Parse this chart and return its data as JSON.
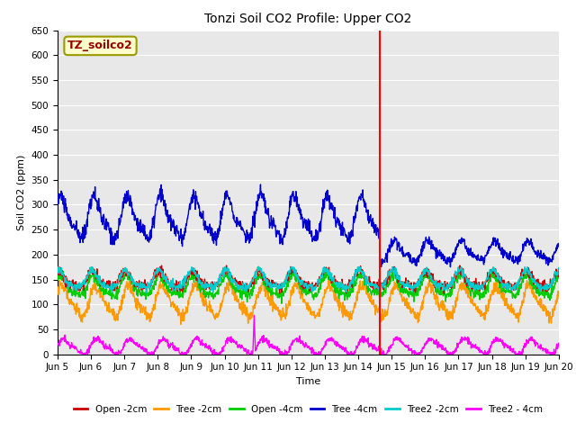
{
  "title": "Tonzi Soil CO2 Profile: Upper CO2",
  "ylabel": "Soil CO2 (ppm)",
  "xlabel": "Time",
  "watermark": "TZ_soilco2",
  "ylim": [
    0,
    650
  ],
  "yticks": [
    0,
    50,
    100,
    150,
    200,
    250,
    300,
    350,
    400,
    450,
    500,
    550,
    600,
    650
  ],
  "xlim_start": 5,
  "xlim_end": 20,
  "xtick_labels": [
    "Jun 5",
    "Jun 6",
    "Jun 7",
    "Jun 8",
    "Jun 9",
    "Jun 10",
    "Jun 11",
    "Jun 12",
    "Jun 13",
    "Jun 14",
    "Jun 15",
    "Jun 16",
    "Jun 17",
    "Jun 18",
    "Jun 19",
    "Jun 20"
  ],
  "xtick_positions": [
    5,
    6,
    7,
    8,
    9,
    10,
    11,
    12,
    13,
    14,
    15,
    16,
    17,
    18,
    19,
    20
  ],
  "vertical_line_x": 14.65,
  "vertical_line_color": "#ff0000",
  "series": {
    "Open_2cm": {
      "color": "#cc0000",
      "label": "Open -2cm",
      "lw": 1.0
    },
    "Tree_2cm": {
      "color": "#ff9900",
      "label": "Tree -2cm",
      "lw": 1.0
    },
    "Open_4cm": {
      "color": "#00cc00",
      "label": "Open -4cm",
      "lw": 1.0
    },
    "Tree_4cm": {
      "color": "#0000cc",
      "label": "Tree -4cm",
      "lw": 1.0
    },
    "Tree2_2cm": {
      "color": "#00cccc",
      "label": "Tree2 -2cm",
      "lw": 1.0
    },
    "Tree2_4cm": {
      "color": "#ff00ff",
      "label": "Tree2 - 4cm",
      "lw": 1.0
    }
  },
  "background_color": "#e8e8e8",
  "figure_bg": "#ffffff",
  "grid_color": "#ffffff",
  "watermark_facecolor": "#ffffcc",
  "watermark_edgecolor": "#999900",
  "watermark_textcolor": "#990000",
  "title_fontsize": 10,
  "axis_fontsize": 8,
  "tick_fontsize": 7.5,
  "legend_fontsize": 7.5
}
